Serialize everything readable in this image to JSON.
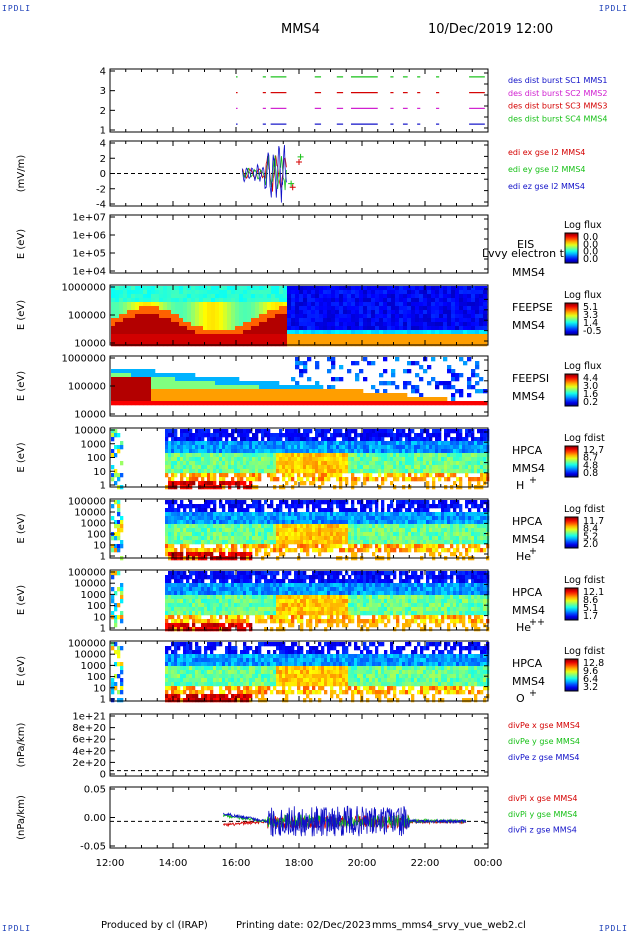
{
  "corners": {
    "tl": "IPDLI",
    "tr": "IPDLI",
    "bl": "IPDLI",
    "br": "IPDLI"
  },
  "header": {
    "title": "MMS4",
    "date": "10/Dec/2019 12:00"
  },
  "footer": {
    "producer": "Produced by cl (IRAP)",
    "printing": "Printing date: 02/Dec/2023",
    "file": "mms_mms4_srvy_vue_web2.cl"
  },
  "colors": {
    "red": "#d40000",
    "green": "#16c016",
    "blue": "#1010c8",
    "magenta": "#d020d0"
  },
  "chart_data": [
    {
      "type": "line",
      "name": "burst",
      "yticks": [
        "4",
        "3",
        "2",
        "1"
      ],
      "ylim": [
        0.5,
        4.5
      ],
      "legend": [
        {
          "text": "des dist burst SC1 MMS1",
          "color": "#1010c8"
        },
        {
          "text": "des dist burst SC2 MMS2",
          "color": "#d020d0"
        },
        {
          "text": "des dist burst SC3 MMS3",
          "color": "#d40000"
        },
        {
          "text": "des dist burst SC4 MMS4",
          "color": "#16c016"
        }
      ],
      "series": [
        {
          "y": 4,
          "color": "#16c016",
          "segments": [
            [
              16.0,
              16.05
            ],
            [
              16.85,
              16.95
            ],
            [
              17.1,
              17.6
            ],
            [
              18.5,
              18.7
            ],
            [
              19.2,
              19.4
            ],
            [
              19.65,
              20.5
            ],
            [
              20.9,
              21.0
            ],
            [
              21.3,
              21.45
            ],
            [
              21.75,
              21.85
            ],
            [
              22.35,
              22.45
            ],
            [
              23.4,
              23.9
            ]
          ]
        },
        {
          "y": 3,
          "color": "#d40000",
          "segments": [
            [
              16.0,
              16.05
            ],
            [
              16.85,
              16.95
            ],
            [
              17.1,
              17.6
            ],
            [
              18.5,
              18.7
            ],
            [
              19.2,
              19.4
            ],
            [
              19.65,
              20.5
            ],
            [
              20.9,
              21.0
            ],
            [
              21.3,
              21.45
            ],
            [
              21.75,
              21.85
            ],
            [
              22.35,
              22.45
            ],
            [
              23.4,
              23.9
            ]
          ]
        },
        {
          "y": 2,
          "color": "#d020d0",
          "segments": [
            [
              16.0,
              16.05
            ],
            [
              16.85,
              16.95
            ],
            [
              17.1,
              17.6
            ],
            [
              18.5,
              18.7
            ],
            [
              19.2,
              19.4
            ],
            [
              19.65,
              20.5
            ],
            [
              20.9,
              21.0
            ],
            [
              21.3,
              21.45
            ],
            [
              21.75,
              21.85
            ],
            [
              22.35,
              22.45
            ],
            [
              23.4,
              23.9
            ]
          ]
        },
        {
          "y": 1,
          "color": "#1010c8",
          "segments": [
            [
              16.0,
              16.05
            ],
            [
              16.85,
              16.95
            ],
            [
              17.1,
              17.6
            ],
            [
              18.5,
              18.7
            ],
            [
              19.2,
              19.4
            ],
            [
              19.65,
              20.5
            ],
            [
              20.9,
              21.0
            ],
            [
              21.3,
              21.45
            ],
            [
              21.75,
              21.85
            ],
            [
              22.35,
              22.45
            ],
            [
              23.4,
              23.9
            ]
          ]
        }
      ]
    },
    {
      "type": "line",
      "name": "edi",
      "ylabel": "(mV/m)",
      "yticks": [
        "4",
        "2",
        "0",
        "-2",
        "-4"
      ],
      "ylim": [
        -4.5,
        4.5
      ],
      "legend": [
        {
          "text": "edi ex gse l2 MMS4",
          "color": "#d40000"
        },
        {
          "text": "edi ey gse l2 MMS4",
          "color": "#16c016"
        },
        {
          "text": "edi ez gse l2 MMS4",
          "color": "#1010c8"
        }
      ],
      "xrange": [
        16.2,
        17.6
      ],
      "points": [
        {
          "x": 18.0,
          "y": 1.6,
          "color": "#d40000"
        },
        {
          "x": 18.05,
          "y": 2.3,
          "color": "#16c016"
        },
        {
          "x": 17.75,
          "y": -1.4,
          "color": "#16c016"
        },
        {
          "x": 17.8,
          "y": -1.9,
          "color": "#d40000"
        }
      ]
    },
    {
      "type": "heatmap",
      "name": "EIS",
      "ylabel": "E (eV)",
      "yticks": [
        "1e+07",
        "1e+06",
        "1e+05",
        "1e+04"
      ],
      "labels": [
        "EIS",
        "MMS4"
      ],
      "overlay": "Lvvy electron to",
      "colorbar": {
        "title": "Log flux",
        "ticks": [
          "0.0",
          "0.0",
          "0.0",
          "0.0"
        ]
      }
    },
    {
      "type": "heatmap",
      "name": "FEEPSE",
      "ylabel": "E (eV)",
      "yticks": [
        "1000000",
        "100000",
        "10000"
      ],
      "labels": [
        "FEEPSE",
        "MMS4"
      ],
      "colorbar": {
        "title": "Log flux",
        "ticks": [
          "5.1",
          "3.3",
          "1.4",
          "-0.5"
        ]
      }
    },
    {
      "type": "heatmap",
      "name": "FEEPSI",
      "ylabel": "E (eV)",
      "yticks": [
        "1000000",
        "100000",
        "10000"
      ],
      "labels": [
        "FEEPSI",
        "MMS4"
      ],
      "colorbar": {
        "title": "Log flux",
        "ticks": [
          "4.4",
          "3.0",
          "1.6",
          "0.2"
        ]
      }
    },
    {
      "type": "heatmap",
      "name": "HPCA H+",
      "ylabel": "E (eV)",
      "yticks": [
        "10000",
        "1000",
        "100",
        "10",
        "1"
      ],
      "labels": [
        "HPCA",
        "MMS4",
        "H",
        "+"
      ],
      "colorbar": {
        "title": "Log fdist",
        "ticks": [
          "12.7",
          "8.7",
          "4.8",
          "0.8"
        ]
      }
    },
    {
      "type": "heatmap",
      "name": "HPCA He+",
      "ylabel": "E (eV)",
      "yticks": [
        "100000",
        "10000",
        "1000",
        "100",
        "10",
        "1"
      ],
      "labels": [
        "HPCA",
        "MMS4",
        "He",
        "+"
      ],
      "colorbar": {
        "title": "Log fdist",
        "ticks": [
          "11.7",
          "8.4",
          "5.2",
          "2.0"
        ]
      }
    },
    {
      "type": "heatmap",
      "name": "HPCA He++",
      "ylabel": "E (eV)",
      "yticks": [
        "100000",
        "10000",
        "1000",
        "100",
        "10",
        "1"
      ],
      "labels": [
        "HPCA",
        "MMS4",
        "He",
        "++"
      ],
      "colorbar": {
        "title": "Log fdist",
        "ticks": [
          "12.1",
          "8.6",
          "5.1",
          "1.7"
        ]
      }
    },
    {
      "type": "heatmap",
      "name": "HPCA O+",
      "ylabel": "E (eV)",
      "yticks": [
        "100000",
        "10000",
        "1000",
        "100",
        "10",
        "1"
      ],
      "labels": [
        "HPCA",
        "MMS4",
        "O",
        "+"
      ],
      "colorbar": {
        "title": "Log fdist",
        "ticks": [
          "12.8",
          "9.6",
          "6.4",
          "3.2"
        ]
      }
    },
    {
      "type": "line",
      "name": "divPe",
      "ylabel": "(nPa/km)",
      "yticks": [
        "1e+21",
        "8e+20",
        "6e+20",
        "4e+20",
        "2e+20",
        "0"
      ],
      "ylim": [
        -1e+20,
        1.05e+21
      ],
      "legend": [
        {
          "text": "divPe x gse MMS4",
          "color": "#d40000"
        },
        {
          "text": "divPe y gse MMS4",
          "color": "#16c016"
        },
        {
          "text": "divPe z gse MMS4",
          "color": "#1010c8"
        }
      ]
    },
    {
      "type": "line",
      "name": "divPi",
      "ylabel": "(nPa/km)",
      "yticks": [
        "0.05",
        "0.00",
        "-0.05"
      ],
      "ylim": [
        -0.07,
        0.09
      ],
      "legend": [
        {
          "text": "divPi x gse MMS4",
          "color": "#d40000"
        },
        {
          "text": "divPi y gse MMS4",
          "color": "#16c016"
        },
        {
          "text": "divPi z gse MMS4",
          "color": "#1010c8"
        }
      ],
      "xrange": [
        15.6,
        23.3
      ]
    }
  ],
  "xaxis": {
    "ticks": [
      "12:00",
      "14:00",
      "16:00",
      "18:00",
      "20:00",
      "22:00",
      "00:00"
    ],
    "range_hours": [
      12,
      24
    ]
  }
}
